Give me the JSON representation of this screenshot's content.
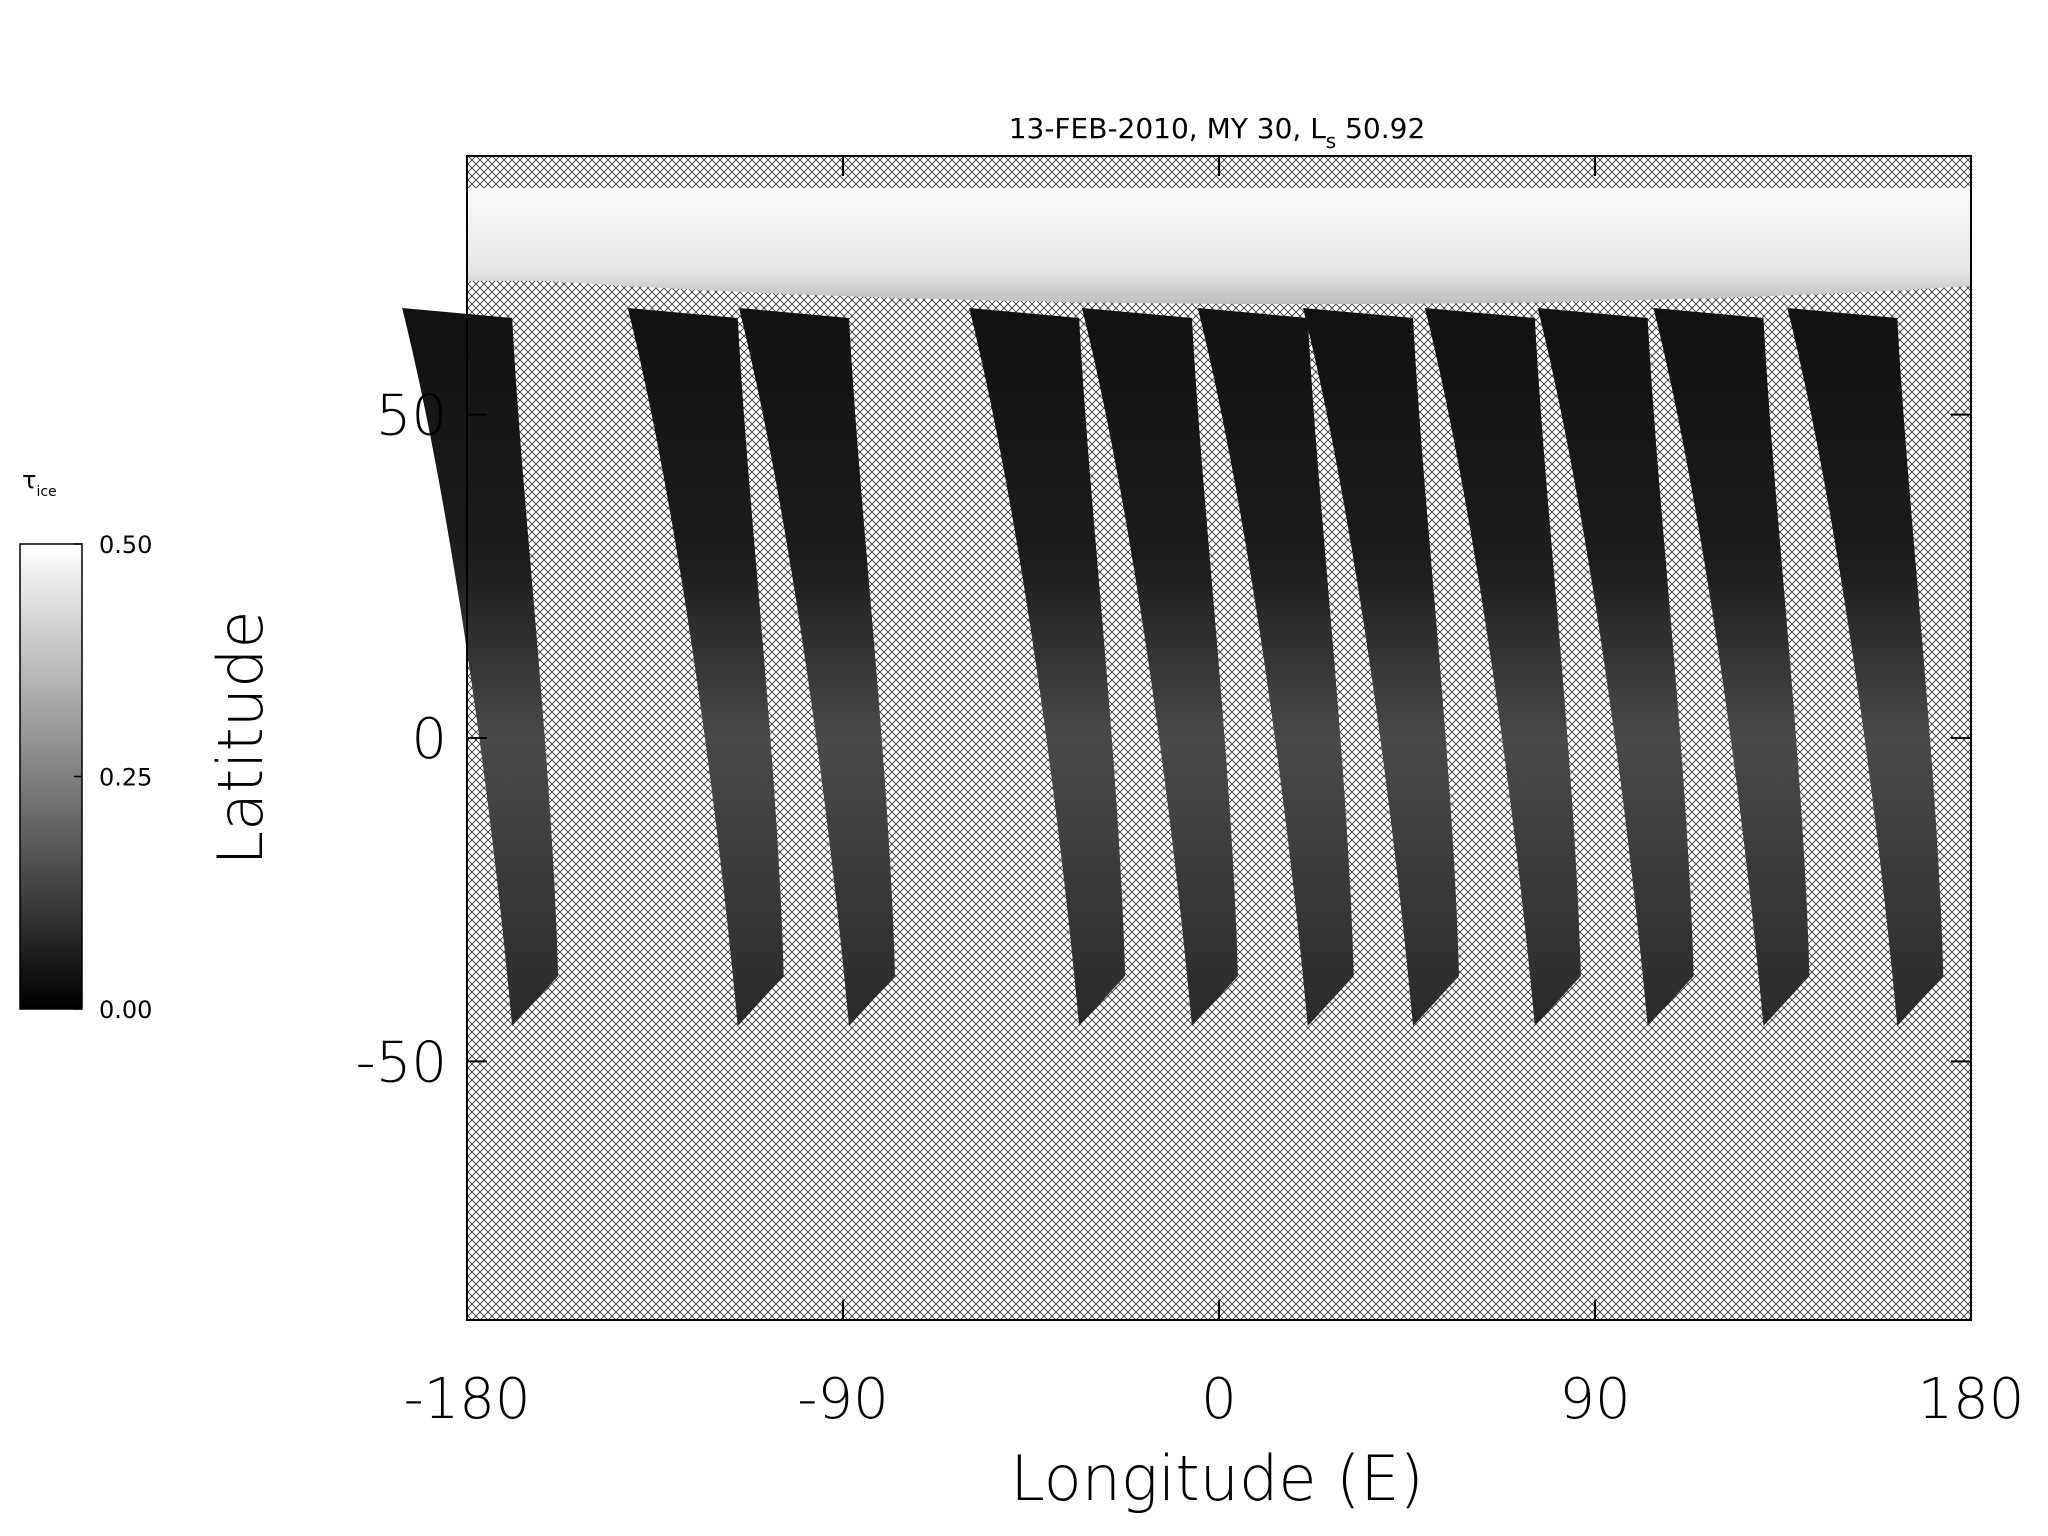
{
  "chart_data": {
    "type": "map",
    "title": {
      "prefix": "13-FEB-2010, MY 30,  L",
      "subscript": "s",
      "suffix": " 50.92"
    },
    "xlabel": "Longitude (E)",
    "ylabel": "Latitude",
    "xlim": [
      -180,
      180
    ],
    "xticks": [
      -180,
      -90,
      0,
      90,
      180
    ],
    "ylim": [
      -90,
      90
    ],
    "yticks": [
      -50,
      0,
      50
    ],
    "colorbar": {
      "label": {
        "symbol": "τ",
        "subscript": "ice"
      },
      "clim": [
        0,
        0.5
      ],
      "ticks": [
        {
          "value": 0.5,
          "label": "0.50"
        },
        {
          "value": 0.25,
          "label": "0.25"
        },
        {
          "value": 0,
          "label": "0.00"
        }
      ],
      "colors": [
        "#000000",
        "#ffffff"
      ]
    }
  }
}
